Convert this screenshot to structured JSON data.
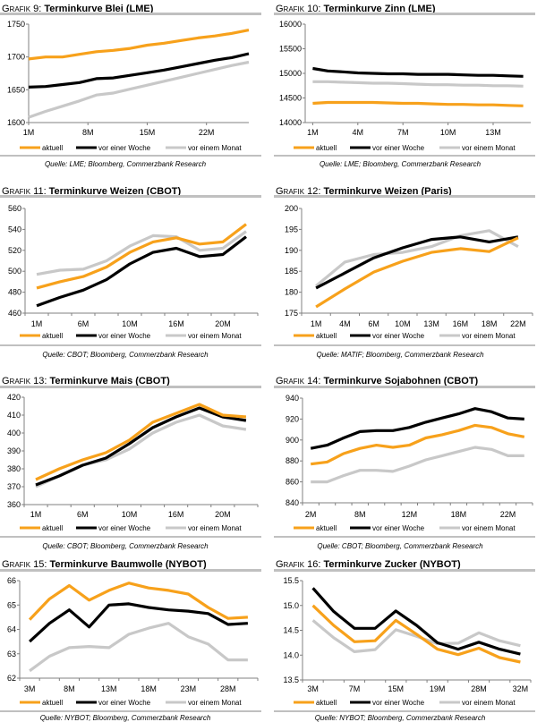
{
  "colors": {
    "aktuell": "#f7a11b",
    "vor_einer_woche": "#000000",
    "vor_einem_monat": "#c8c8c8",
    "rule": "#c0c0c0",
    "axis": "#808080"
  },
  "chart_data": [
    {
      "type": "line",
      "figure_label": "Grafik 9:",
      "title": "Terminkurve Blei (LME)",
      "source": "Quelle: LME; Bloomberg, Commerzbank Research",
      "ylim": [
        1600,
        1750
      ],
      "ystep": 50,
      "ydecimals": 0,
      "xlim": [
        1,
        27
      ],
      "x": [
        1,
        3,
        5,
        7,
        9,
        11,
        13,
        15,
        17,
        19,
        21,
        23,
        25,
        27
      ],
      "x_ticks": [
        {
          "label": "1M",
          "x": 1
        },
        {
          "label": "8M",
          "x": 8
        },
        {
          "label": "15M",
          "x": 15
        },
        {
          "label": "22M",
          "x": 22
        }
      ],
      "series": [
        {
          "name": "aktuell",
          "values": [
            1697,
            1700,
            1700,
            1704,
            1708,
            1710,
            1713,
            1718,
            1721,
            1725,
            1729,
            1732,
            1736,
            1741
          ]
        },
        {
          "name": "vor einer Woche",
          "values": [
            1654,
            1655,
            1658,
            1661,
            1667,
            1668,
            1672,
            1676,
            1680,
            1685,
            1690,
            1695,
            1699,
            1705
          ]
        },
        {
          "name": "vor einem Monat",
          "values": [
            1608,
            1617,
            1625,
            1633,
            1642,
            1645,
            1651,
            1657,
            1663,
            1669,
            1675,
            1681,
            1687,
            1692
          ]
        }
      ]
    },
    {
      "type": "line",
      "figure_label": "Grafik 10:",
      "title": "Terminkurve Zinn (LME)",
      "source": "Quelle: LME; Bloomberg, Commerzbank Research",
      "ylim": [
        14000,
        16000
      ],
      "ystep": 500,
      "ydecimals": 0,
      "xlim": [
        0.5,
        15.5
      ],
      "x": [
        1,
        2,
        3,
        4,
        5,
        6,
        7,
        8,
        9,
        10,
        11,
        12,
        13,
        14,
        15
      ],
      "x_ticks": [
        {
          "label": "1M",
          "x": 1
        },
        {
          "label": "4M",
          "x": 4
        },
        {
          "label": "7M",
          "x": 7
        },
        {
          "label": "10M",
          "x": 10
        },
        {
          "label": "13M",
          "x": 13
        }
      ],
      "series": [
        {
          "name": "aktuell",
          "values": [
            14390,
            14410,
            14410,
            14410,
            14410,
            14400,
            14390,
            14390,
            14380,
            14370,
            14370,
            14360,
            14360,
            14350,
            14340
          ]
        },
        {
          "name": "vor einer Woche",
          "values": [
            15100,
            15050,
            15030,
            15010,
            15000,
            14990,
            14990,
            14980,
            14980,
            14980,
            14970,
            14960,
            14960,
            14950,
            14940
          ]
        },
        {
          "name": "vor einem Monat",
          "values": [
            14830,
            14830,
            14820,
            14810,
            14800,
            14800,
            14790,
            14780,
            14770,
            14770,
            14760,
            14760,
            14750,
            14750,
            14740
          ]
        }
      ]
    },
    {
      "type": "line",
      "figure_label": "Grafik 11:",
      "title": "Terminkurve Weizen (CBOT)",
      "source": "Quelle: CBOT; Bloomberg, Commerzbank Research",
      "ylim": [
        460,
        560
      ],
      "ystep": 20,
      "ydecimals": 0,
      "xlim": [
        -0.5,
        9.5
      ],
      "x": [
        0,
        1,
        2,
        3,
        4,
        5,
        6,
        7,
        8,
        9
      ],
      "x_ticks": [
        {
          "label": "1M",
          "x": 0
        },
        {
          "label": "6M",
          "x": 2
        },
        {
          "label": "10M",
          "x": 4
        },
        {
          "label": "16M",
          "x": 6
        },
        {
          "label": "20M",
          "x": 8
        }
      ],
      "series": [
        {
          "name": "aktuell",
          "values": [
            484,
            490,
            495,
            504,
            518,
            528,
            532,
            526,
            528,
            545
          ]
        },
        {
          "name": "vor einer Woche",
          "values": [
            467,
            475,
            482,
            492,
            507,
            518,
            522,
            514,
            516,
            533
          ]
        },
        {
          "name": "vor einem Monat",
          "values": [
            497,
            501,
            502,
            510,
            524,
            534,
            533,
            520,
            522,
            538
          ]
        }
      ]
    },
    {
      "type": "line",
      "figure_label": "Grafik 12:",
      "title": "Terminkurve Weizen (Paris)",
      "source": "Quelle: MATIF; Bloomberg, Commerzbank Research",
      "ylim": [
        175,
        200
      ],
      "ystep": 5,
      "ydecimals": 0,
      "xlim": [
        -0.5,
        7.5
      ],
      "x": [
        0,
        1,
        2,
        3,
        4,
        5,
        6,
        7
      ],
      "x_ticks": [
        {
          "label": "1M",
          "x": 0
        },
        {
          "label": "4M",
          "x": 1
        },
        {
          "label": "6M",
          "x": 2
        },
        {
          "label": "10M",
          "x": 3
        },
        {
          "label": "13M",
          "x": 4
        },
        {
          "label": "16M",
          "x": 5
        },
        {
          "label": "18M",
          "x": 6
        },
        {
          "label": "22M",
          "x": 7
        }
      ],
      "series": [
        {
          "name": "aktuell",
          "values": [
            176.5,
            180.8,
            184.8,
            187.4,
            189.5,
            190.4,
            189.7,
            193.0
          ]
        },
        {
          "name": "vor einer Woche",
          "values": [
            181.0,
            184.6,
            188.2,
            190.6,
            192.6,
            193.2,
            192.0,
            193.2
          ]
        },
        {
          "name": "vor einem Monat",
          "values": [
            181.5,
            187.2,
            189.0,
            189.5,
            190.9,
            193.5,
            194.7,
            190.9
          ]
        }
      ]
    },
    {
      "type": "line",
      "figure_label": "Grafik 13:",
      "title": "Terminkurve Mais (CBOT)",
      "source": "Quelle: CBOT; Bloomberg, Commerzbank Research",
      "ylim": [
        360,
        420
      ],
      "ystep": 10,
      "ydecimals": 0,
      "xlim": [
        -0.5,
        9.5
      ],
      "x": [
        0,
        1,
        2,
        3,
        4,
        5,
        6,
        7,
        8,
        9
      ],
      "x_ticks": [
        {
          "label": "1M",
          "x": 0
        },
        {
          "label": "6M",
          "x": 2
        },
        {
          "label": "10M",
          "x": 4
        },
        {
          "label": "16M",
          "x": 6
        },
        {
          "label": "20M",
          "x": 8
        }
      ],
      "series": [
        {
          "name": "aktuell",
          "values": [
            374,
            380,
            385,
            389,
            396,
            406,
            411,
            416,
            410,
            409
          ]
        },
        {
          "name": "vor einer Woche",
          "values": [
            371,
            376,
            382,
            386,
            394,
            403,
            409,
            414,
            409,
            407
          ]
        },
        {
          "name": "vor einem Monat",
          "values": [
            370,
            376,
            382,
            385,
            391,
            400,
            406,
            410,
            404,
            402
          ]
        }
      ]
    },
    {
      "type": "line",
      "figure_label": "Grafik 14:",
      "title": "Terminkurve Sojabohnen (CBOT)",
      "source": "Quelle: CBOT; Bloomberg, Commerzbank Research",
      "ylim": [
        840,
        940
      ],
      "ystep": 20,
      "ydecimals": 0,
      "xlim": [
        -0.5,
        13.5
      ],
      "x": [
        0,
        1,
        2,
        3,
        4,
        5,
        6,
        7,
        8,
        9,
        10,
        11,
        12,
        13
      ],
      "x_ticks": [
        {
          "label": "2M",
          "x": 0
        },
        {
          "label": "8M",
          "x": 3
        },
        {
          "label": "12M",
          "x": 6
        },
        {
          "label": "18M",
          "x": 9
        },
        {
          "label": "22M",
          "x": 12
        }
      ],
      "series": [
        {
          "name": "aktuell",
          "values": [
            877,
            879,
            887,
            892,
            895,
            893,
            895,
            902,
            905,
            909,
            914,
            912,
            906,
            903
          ]
        },
        {
          "name": "vor einer Woche",
          "values": [
            892,
            895,
            902,
            908,
            909,
            909,
            912,
            917,
            921,
            925,
            930,
            927,
            921,
            920
          ]
        },
        {
          "name": "vor einem Monat",
          "values": [
            860,
            860,
            866,
            871,
            871,
            870,
            875,
            881,
            885,
            889,
            893,
            891,
            885,
            885
          ]
        }
      ]
    },
    {
      "type": "line",
      "figure_label": "Grafik 15:",
      "title": "Terminkurve Baumwolle (NYBOT)",
      "source": "Quelle: NYBOT; Bloomberg, Commerzbank Research",
      "ylim": [
        62,
        66
      ],
      "ystep": 1,
      "ydecimals": 0,
      "xlim": [
        -0.5,
        11.5
      ],
      "x": [
        0,
        1,
        2,
        3,
        4,
        5,
        6,
        7,
        8,
        9,
        10,
        11
      ],
      "x_ticks": [
        {
          "label": "3M",
          "x": 0
        },
        {
          "label": "8M",
          "x": 2
        },
        {
          "label": "13M",
          "x": 4
        },
        {
          "label": "18M",
          "x": 6
        },
        {
          "label": "23M",
          "x": 8
        },
        {
          "label": "28M",
          "x": 10
        }
      ],
      "series": [
        {
          "name": "aktuell",
          "values": [
            64.4,
            65.25,
            65.8,
            65.2,
            65.6,
            65.9,
            65.7,
            65.6,
            65.45,
            64.9,
            64.45,
            64.5
          ]
        },
        {
          "name": "vor einer Woche",
          "values": [
            63.5,
            64.25,
            64.8,
            64.1,
            65.0,
            65.05,
            64.9,
            64.8,
            64.75,
            64.65,
            64.2,
            64.25
          ]
        },
        {
          "name": "vor einem Monat",
          "values": [
            62.3,
            62.9,
            63.25,
            63.3,
            63.25,
            63.8,
            64.05,
            64.25,
            63.7,
            63.4,
            62.75,
            62.75
          ]
        }
      ]
    },
    {
      "type": "line",
      "figure_label": "Grafik 16:",
      "title": "Terminkurve Zucker (NYBOT)",
      "source": "Quelle: NYBOT; Bloomberg, Commerzbank Research",
      "ylim": [
        13.5,
        15.5
      ],
      "ystep": 0.5,
      "ydecimals": 1,
      "xlim": [
        -0.5,
        10.5
      ],
      "x": [
        0,
        1,
        2,
        3,
        4,
        5,
        6,
        7,
        8,
        9,
        10
      ],
      "x_ticks": [
        {
          "label": "3M",
          "x": 0
        },
        {
          "label": "7M",
          "x": 2
        },
        {
          "label": "15M",
          "x": 4
        },
        {
          "label": "19M",
          "x": 6
        },
        {
          "label": "28M",
          "x": 8
        },
        {
          "label": "32M",
          "x": 10
        }
      ],
      "series": [
        {
          "name": "aktuell",
          "values": [
            15.0,
            14.6,
            14.27,
            14.29,
            14.7,
            14.42,
            14.12,
            14.01,
            14.14,
            13.95,
            13.86
          ]
        },
        {
          "name": "vor einer Woche",
          "values": [
            15.35,
            14.88,
            14.54,
            14.54,
            14.89,
            14.6,
            14.25,
            14.12,
            14.26,
            14.12,
            14.02
          ]
        },
        {
          "name": "vor einem Monat",
          "values": [
            14.7,
            14.35,
            14.07,
            14.11,
            14.51,
            14.38,
            14.23,
            14.24,
            14.45,
            14.29,
            14.19
          ]
        }
      ]
    }
  ]
}
